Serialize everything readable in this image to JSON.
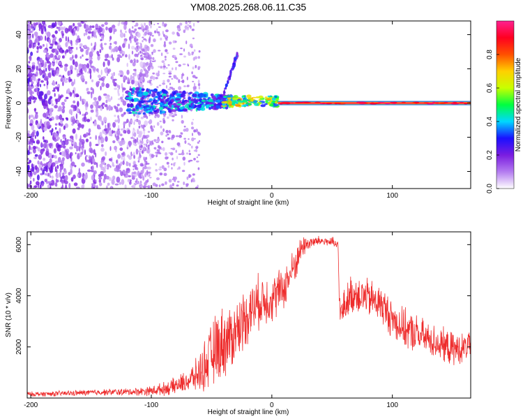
{
  "figure_title": "YM08.2025.268.06.11.C35",
  "chart_data": [
    {
      "type": "heatmap",
      "title": "YM08.2025.268.06.11.C35",
      "xlabel": "Height of straight line (km)",
      "ylabel": "Frequency (Hz)",
      "xlim": [
        -203,
        165
      ],
      "ylim": [
        -50,
        48
      ],
      "x_ticks": [
        -200,
        -100,
        0,
        100
      ],
      "y_ticks": [
        -40,
        -20,
        0,
        20,
        40
      ],
      "colorbar": {
        "label": "Normalized spectral amplitude",
        "range": [
          0,
          1
        ],
        "ticks": [
          0,
          0.2,
          0.4,
          0.6,
          0.8
        ],
        "tick_labels": [
          "0.0",
          "0.2",
          "0.4",
          "0.6",
          "0.8"
        ],
        "colors": [
          "#ffffff",
          "#b47cf0",
          "#7a1de0",
          "#1a10ff",
          "#00d8ff",
          "#00ff40",
          "#c8ff00",
          "#ffd000",
          "#ff5000",
          "#ff0020",
          "#ff2090"
        ]
      },
      "regions": [
        {
          "name": "scatter",
          "x_range": [
            -203,
            -100
          ],
          "f_range": [
            -50,
            48
          ],
          "amplitude": 0.15
        },
        {
          "name": "transition",
          "x_range": [
            -120,
            -30
          ],
          "f_range": [
            -8,
            8
          ],
          "amplitude": 0.3
        },
        {
          "name": "rising-branch",
          "x_range": [
            -40,
            -28
          ],
          "f_range": [
            5,
            30
          ],
          "amplitude": 0.25
        },
        {
          "name": "converging",
          "x_range": [
            -40,
            5
          ],
          "f_range": [
            -2,
            4
          ],
          "amplitude": 0.6
        },
        {
          "name": "steady-line",
          "x_range": [
            5,
            165
          ],
          "f_range": [
            -1,
            1
          ],
          "amplitude": 0.95
        }
      ]
    },
    {
      "type": "line",
      "title": "",
      "xlabel": "Height of straight line (km)",
      "ylabel": "SNR (10 * v/v)",
      "xlim": [
        -203,
        165
      ],
      "ylim": [
        0,
        6500
      ],
      "x_ticks": [
        -200,
        -100,
        0,
        100
      ],
      "y_ticks": [
        2000,
        4000,
        6000
      ],
      "series": [
        {
          "name": "SNR",
          "color": "#ee2c2c",
          "x": [
            -203,
            -180,
            -160,
            -140,
            -120,
            -100,
            -85,
            -70,
            -62,
            -55,
            -50,
            -45,
            -40,
            -35,
            -30,
            -20,
            -10,
            0,
            10,
            15,
            20,
            25,
            30,
            40,
            50,
            55,
            56,
            58,
            60,
            65,
            70,
            80,
            90,
            100,
            110,
            120,
            130,
            140,
            150,
            160,
            165
          ],
          "values": [
            150,
            170,
            200,
            230,
            240,
            280,
            400,
            650,
            900,
            1300,
            1700,
            2000,
            2200,
            2300,
            2600,
            3300,
            3800,
            3900,
            4300,
            4800,
            5300,
            5900,
            6050,
            6150,
            6100,
            5900,
            3800,
            3200,
            3600,
            4000,
            4100,
            3900,
            3700,
            3100,
            2700,
            2500,
            2300,
            2100,
            1900,
            1950,
            2200
          ],
          "noise_amplitude": [
            100,
            110,
            120,
            130,
            150,
            200,
            300,
            450,
            700,
            1100,
            1300,
            1500,
            1500,
            1400,
            1300,
            1200,
            1100,
            1000,
            900,
            800,
            700,
            500,
            300,
            200,
            200,
            300,
            500,
            600,
            700,
            800,
            800,
            800,
            800,
            800,
            800,
            800,
            700,
            700,
            700,
            600,
            600
          ]
        }
      ]
    }
  ]
}
